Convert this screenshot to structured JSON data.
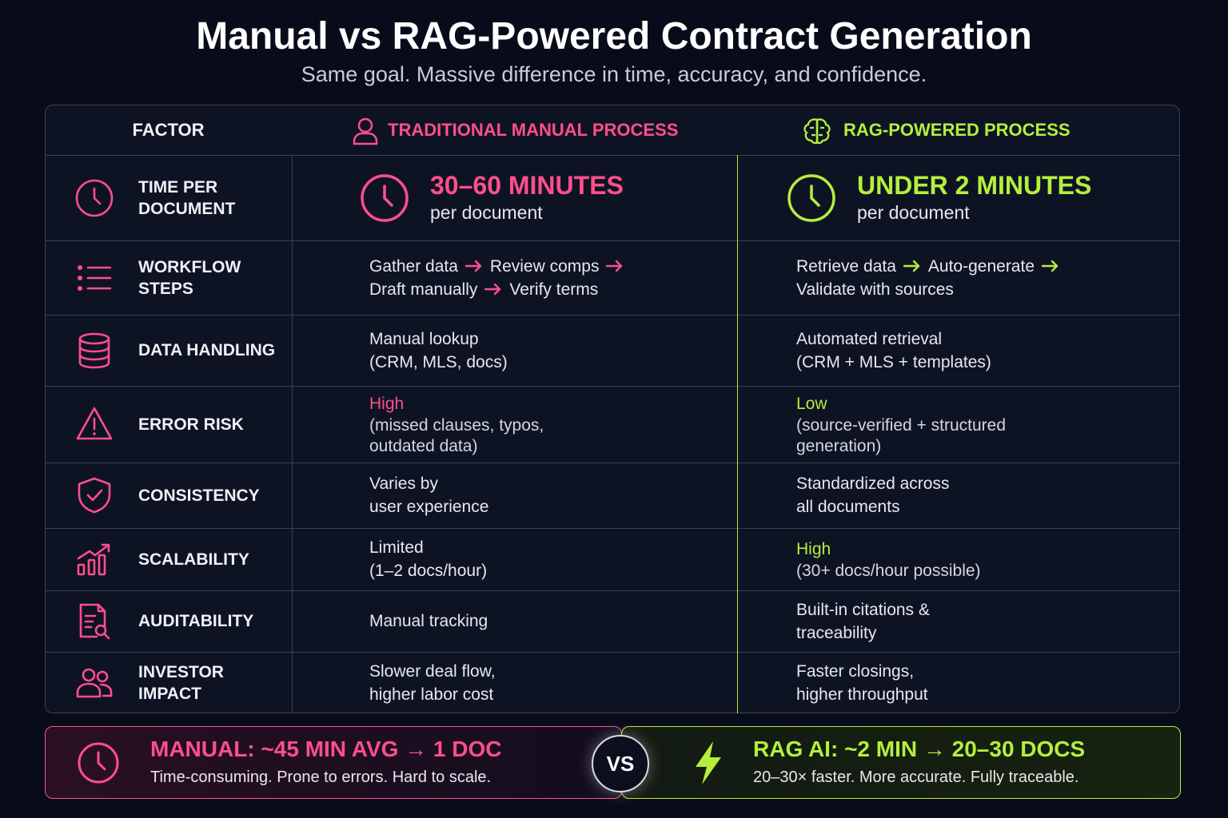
{
  "header": {
    "title": "Manual vs RAG-Powered Contract Generation",
    "subtitle": "Same goal. Massive difference in time, accuracy, and confidence."
  },
  "table": {
    "headers": [
      "FACTOR",
      "TRADITIONAL MANUAL PROCESS",
      "RAG-POWERED PROCESS"
    ],
    "rows": [
      {
        "factor": "TIME PER DOCUMENT",
        "manual": {
          "lead": "30–60 MINUTES",
          "lines": [
            "per document"
          ]
        },
        "rag": {
          "lead": "UNDER 2 MINUTES",
          "lines": [
            "per document"
          ]
        }
      },
      {
        "factor": "WORKFLOW STEPS",
        "manual": {
          "step_lines": [
            [
              "Gather data",
              "Review comps"
            ],
            [
              "Draft manually",
              "Verify terms"
            ]
          ]
        },
        "rag": {
          "step_lines": [
            [
              "Retrieve data",
              "Auto-generate"
            ],
            [
              "Validate with sources"
            ]
          ]
        }
      },
      {
        "factor": "DATA HANDLING",
        "manual": {
          "lines": [
            "Manual lookup",
            "(CRM, MLS, docs)"
          ]
        },
        "rag": {
          "lines": [
            "Automated retrieval",
            "(CRM + MLS + templates)"
          ]
        }
      },
      {
        "factor": "ERROR RISK",
        "manual": {
          "lead": "High",
          "lines": [
            "(missed clauses, typos,",
            "outdated data)"
          ]
        },
        "rag": {
          "lead": "Low",
          "lines": [
            "(source-verified + structured",
            "generation)"
          ]
        }
      },
      {
        "factor": "CONSISTENCY",
        "manual": {
          "lines": [
            "Varies by",
            "user experience"
          ]
        },
        "rag": {
          "lines": [
            "Standardized across",
            "all documents"
          ]
        }
      },
      {
        "factor": "SCALABILITY",
        "manual": {
          "lines": [
            "Limited",
            "(1–2 docs/hour)"
          ]
        },
        "rag": {
          "lead": "High",
          "lines": [
            "(30+ docs/hour possible)"
          ]
        }
      },
      {
        "factor": "AUDITABILITY",
        "manual": {
          "lines": [
            "Manual tracking"
          ]
        },
        "rag": {
          "lines": [
            "Built-in citations &",
            "traceability"
          ]
        }
      },
      {
        "factor": "INVESTOR IMPACT",
        "manual": {
          "lines": [
            "Slower deal flow,",
            "higher labor cost"
          ]
        },
        "rag": {
          "lines": [
            "Faster closings,",
            "higher throughput"
          ]
        }
      }
    ]
  },
  "footer": {
    "manual": {
      "title": "MANUAL: ~45 MIN AVG → 1 DOC",
      "text": "Time-consuming. Prone to errors. Hard to scale."
    },
    "vs": "VS",
    "rag": {
      "title": "RAG AI: ~2 MIN → 20–30 DOCS",
      "text": "20–30× faster. More accurate. Fully traceable."
    }
  }
}
